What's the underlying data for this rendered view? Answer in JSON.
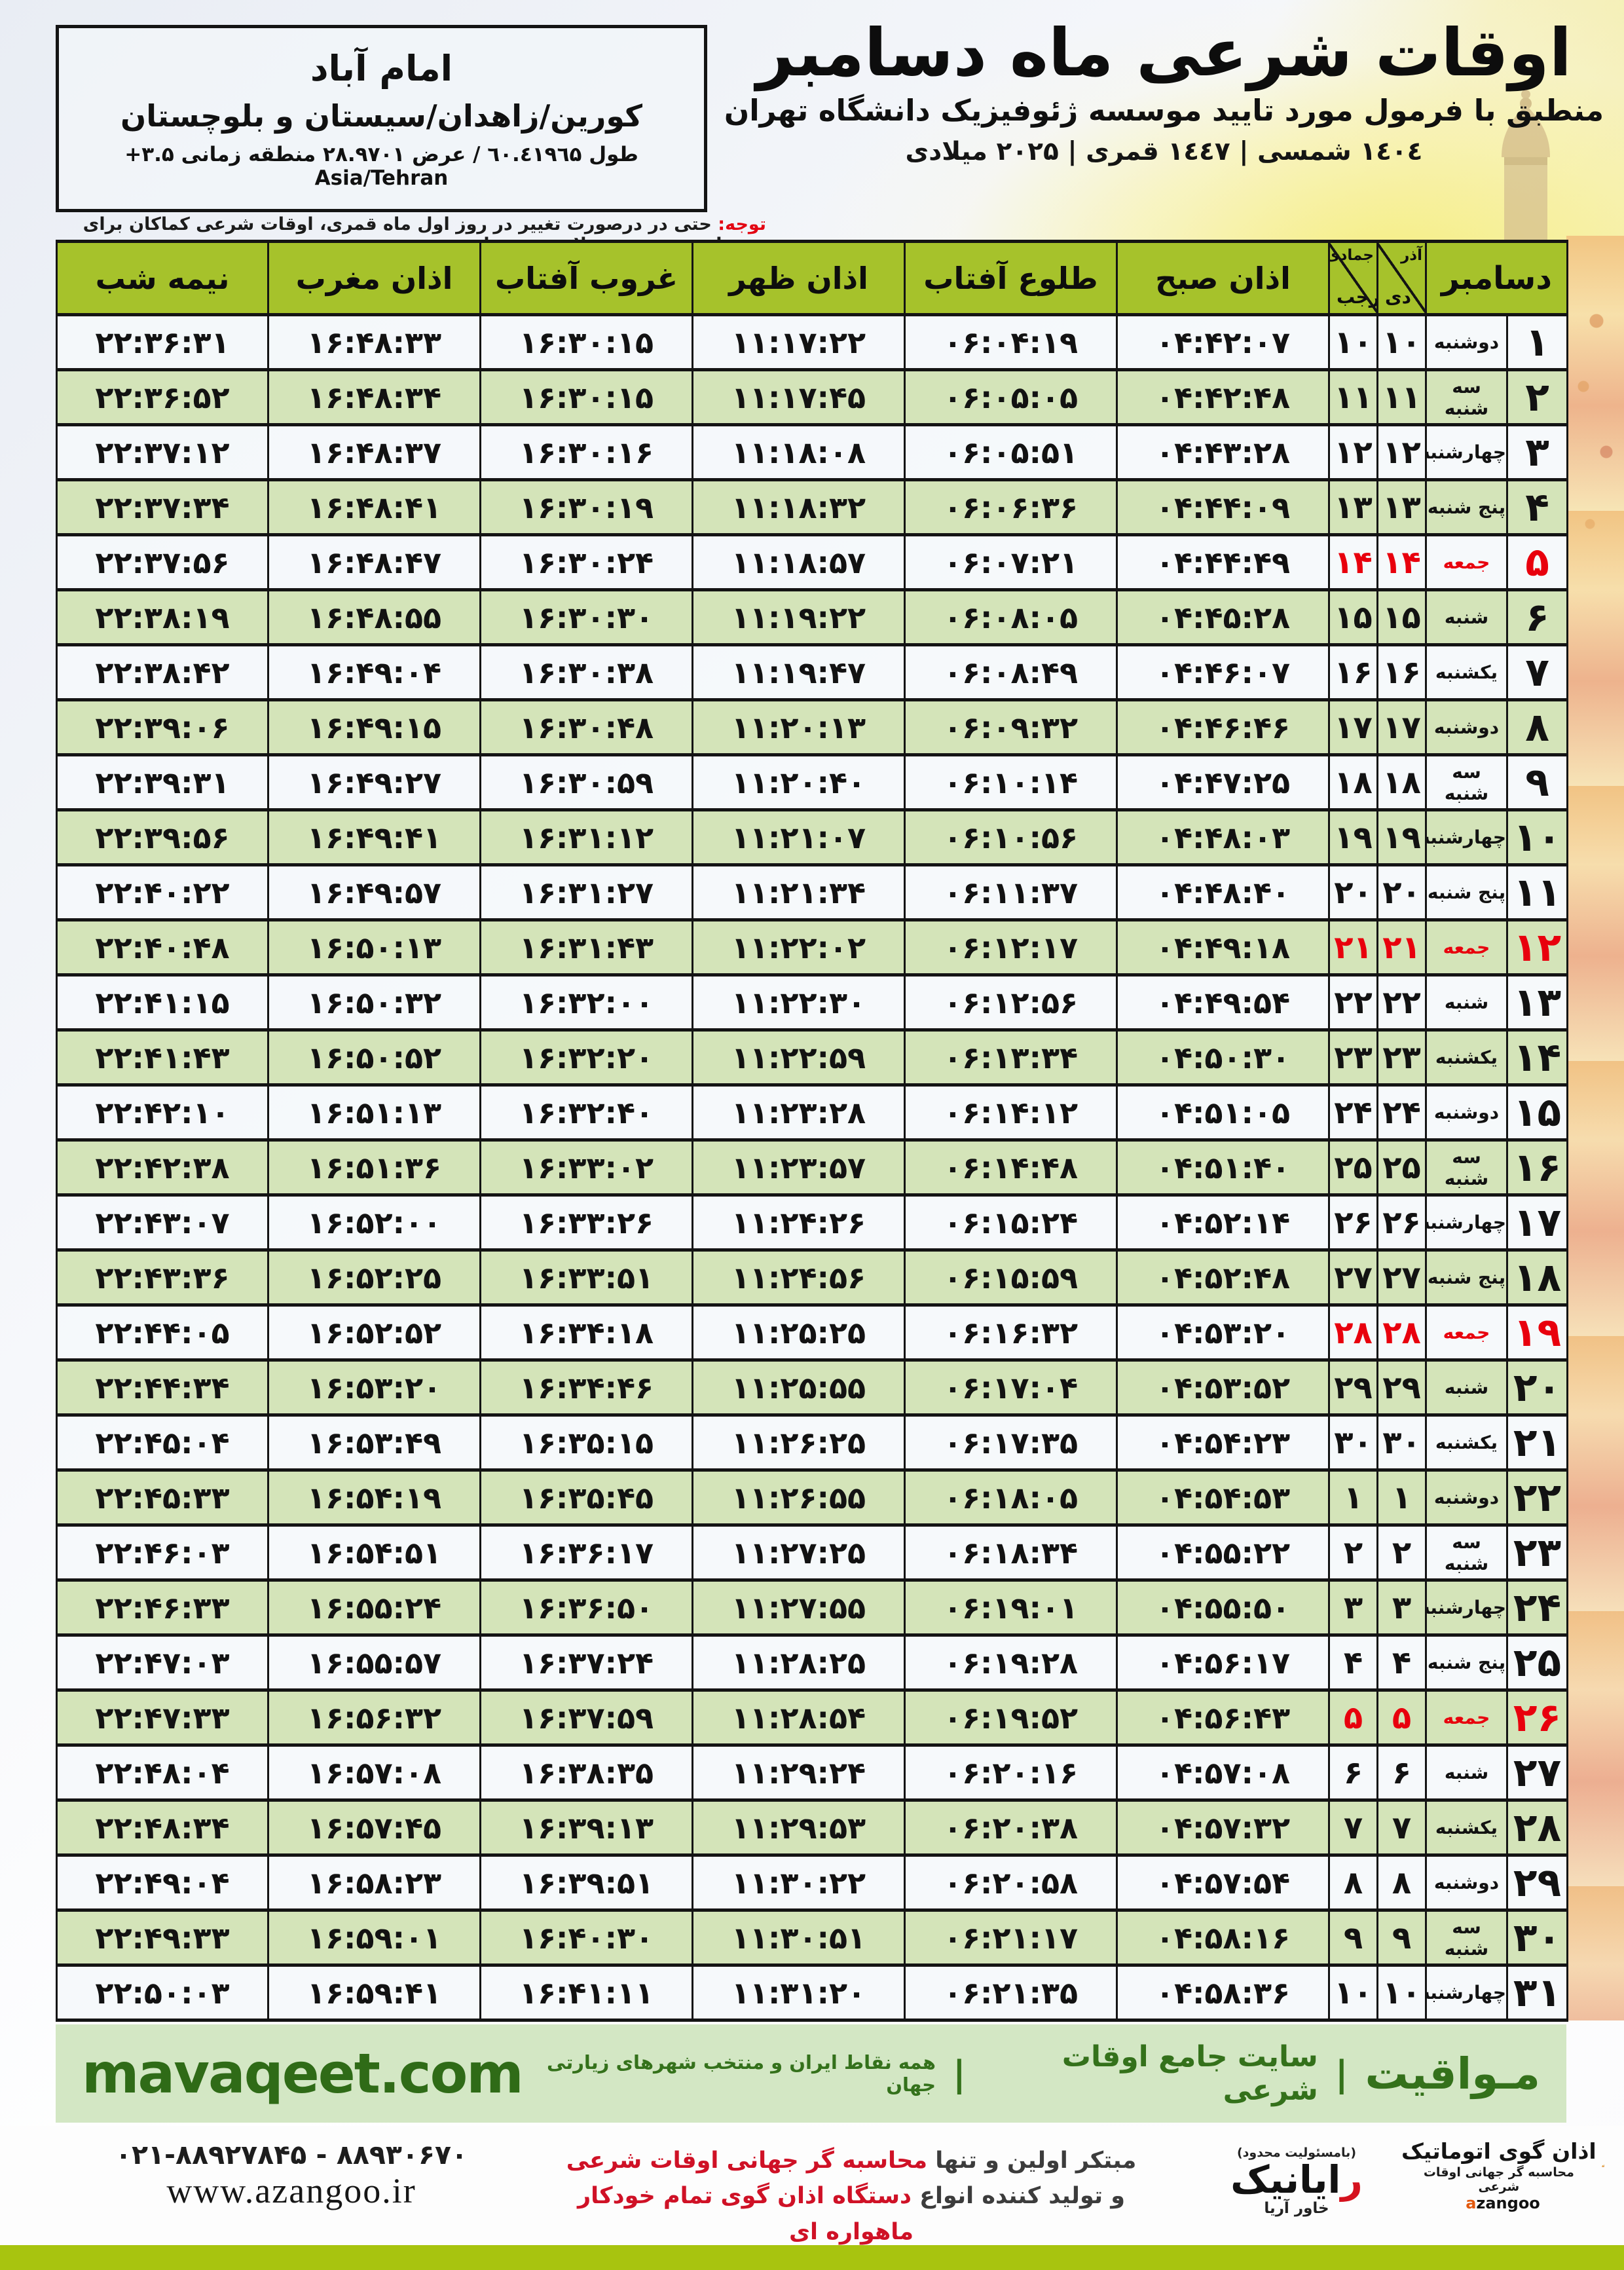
{
  "colors": {
    "header_green": "#a6c22b",
    "row_green": "#d4e4b9",
    "row_light": "#f5f8fb",
    "friday_red": "#e8000d",
    "band_green_bg": "#d3e7c4",
    "band_green_text": "#2f6b17",
    "bottom_bar_green": "#a8c40f",
    "accent_red": "#cf1126",
    "logo_orange": "#f09a2e"
  },
  "header": {
    "title": "اوقات شرعی ماه دسامبر",
    "subtitle": "منطبق با فرمول مورد تایید موسسه ژئوفیزیک دانشگاه تهران",
    "years": "۱٤۰٤ شمسی | ۱٤٤۷ قمری | ۲۰۲۵ میلادی"
  },
  "location": {
    "city": "امام آباد",
    "region": "کورین/زاهدان/سیستان و بلوچستان",
    "coords": "طول ٦۰.٤۱۹٦۵ / عرض ۲۸.۹۷۰۱ منطقه زمانی ۳.۵+ Asia/Tehran"
  },
  "notice": {
    "label": "توجه:",
    "text": "حتی در درصورت تغییر در روز اول ماه قمری، اوقات شرعی کماکان برای روزهای شمسی و میلادی معتبر است."
  },
  "table": {
    "headers": {
      "december": "دسامبر",
      "jalali_top": "آذر",
      "jalali_bottom": "دی",
      "hijri_top": "جمادی الثانی",
      "hijri_bottom": "رجب",
      "fajr": "اذان صبح",
      "sunrise": "طلوع آفتاب",
      "dhuhr": "اذان ظهر",
      "sunset": "غروب آفتاب",
      "maghrib": "اذان مغرب",
      "midnight": "نیمه شب"
    },
    "rows": [
      {
        "day": "۱",
        "weekday": "دوشنبه",
        "jalali": "۱۰",
        "hijri": "۱۰",
        "fajr": "۰۴:۴۲:۰۷",
        "sunrise": "۰۶:۰۴:۱۹",
        "dhuhr": "۱۱:۱۷:۲۲",
        "sunset": "۱۶:۳۰:۱۵",
        "maghrib": "۱۶:۴۸:۳۳",
        "midnight": "۲۲:۳۶:۳۱",
        "friday": false
      },
      {
        "day": "۲",
        "weekday": "سه شنبه",
        "jalali": "۱۱",
        "hijri": "۱۱",
        "fajr": "۰۴:۴۲:۴۸",
        "sunrise": "۰۶:۰۵:۰۵",
        "dhuhr": "۱۱:۱۷:۴۵",
        "sunset": "۱۶:۳۰:۱۵",
        "maghrib": "۱۶:۴۸:۳۴",
        "midnight": "۲۲:۳۶:۵۲",
        "friday": false
      },
      {
        "day": "۳",
        "weekday": "چهارشنبه",
        "jalali": "۱۲",
        "hijri": "۱۲",
        "fajr": "۰۴:۴۳:۲۸",
        "sunrise": "۰۶:۰۵:۵۱",
        "dhuhr": "۱۱:۱۸:۰۸",
        "sunset": "۱۶:۳۰:۱۶",
        "maghrib": "۱۶:۴۸:۳۷",
        "midnight": "۲۲:۳۷:۱۲",
        "friday": false
      },
      {
        "day": "۴",
        "weekday": "پنج شنبه",
        "jalali": "۱۳",
        "hijri": "۱۳",
        "fajr": "۰۴:۴۴:۰۹",
        "sunrise": "۰۶:۰۶:۳۶",
        "dhuhr": "۱۱:۱۸:۳۲",
        "sunset": "۱۶:۳۰:۱۹",
        "maghrib": "۱۶:۴۸:۴۱",
        "midnight": "۲۲:۳۷:۳۴",
        "friday": false
      },
      {
        "day": "۵",
        "weekday": "جمعه",
        "jalali": "۱۴",
        "hijri": "۱۴",
        "fajr": "۰۴:۴۴:۴۹",
        "sunrise": "۰۶:۰۷:۲۱",
        "dhuhr": "۱۱:۱۸:۵۷",
        "sunset": "۱۶:۳۰:۲۴",
        "maghrib": "۱۶:۴۸:۴۷",
        "midnight": "۲۲:۳۷:۵۶",
        "friday": true
      },
      {
        "day": "۶",
        "weekday": "شنبه",
        "jalali": "۱۵",
        "hijri": "۱۵",
        "fajr": "۰۴:۴۵:۲۸",
        "sunrise": "۰۶:۰۸:۰۵",
        "dhuhr": "۱۱:۱۹:۲۲",
        "sunset": "۱۶:۳۰:۳۰",
        "maghrib": "۱۶:۴۸:۵۵",
        "midnight": "۲۲:۳۸:۱۹",
        "friday": false
      },
      {
        "day": "۷",
        "weekday": "یکشنبه",
        "jalali": "۱۶",
        "hijri": "۱۶",
        "fajr": "۰۴:۴۶:۰۷",
        "sunrise": "۰۶:۰۸:۴۹",
        "dhuhr": "۱۱:۱۹:۴۷",
        "sunset": "۱۶:۳۰:۳۸",
        "maghrib": "۱۶:۴۹:۰۴",
        "midnight": "۲۲:۳۸:۴۲",
        "friday": false
      },
      {
        "day": "۸",
        "weekday": "دوشنبه",
        "jalali": "۱۷",
        "hijri": "۱۷",
        "fajr": "۰۴:۴۶:۴۶",
        "sunrise": "۰۶:۰۹:۳۲",
        "dhuhr": "۱۱:۲۰:۱۳",
        "sunset": "۱۶:۳۰:۴۸",
        "maghrib": "۱۶:۴۹:۱۵",
        "midnight": "۲۲:۳۹:۰۶",
        "friday": false
      },
      {
        "day": "۹",
        "weekday": "سه شنبه",
        "jalali": "۱۸",
        "hijri": "۱۸",
        "fajr": "۰۴:۴۷:۲۵",
        "sunrise": "۰۶:۱۰:۱۴",
        "dhuhr": "۱۱:۲۰:۴۰",
        "sunset": "۱۶:۳۰:۵۹",
        "maghrib": "۱۶:۴۹:۲۷",
        "midnight": "۲۲:۳۹:۳۱",
        "friday": false
      },
      {
        "day": "۱۰",
        "weekday": "چهارشنبه",
        "jalali": "۱۹",
        "hijri": "۱۹",
        "fajr": "۰۴:۴۸:۰۳",
        "sunrise": "۰۶:۱۰:۵۶",
        "dhuhr": "۱۱:۲۱:۰۷",
        "sunset": "۱۶:۳۱:۱۲",
        "maghrib": "۱۶:۴۹:۴۱",
        "midnight": "۲۲:۳۹:۵۶",
        "friday": false
      },
      {
        "day": "۱۱",
        "weekday": "پنج شنبه",
        "jalali": "۲۰",
        "hijri": "۲۰",
        "fajr": "۰۴:۴۸:۴۰",
        "sunrise": "۰۶:۱۱:۳۷",
        "dhuhr": "۱۱:۲۱:۳۴",
        "sunset": "۱۶:۳۱:۲۷",
        "maghrib": "۱۶:۴۹:۵۷",
        "midnight": "۲۲:۴۰:۲۲",
        "friday": false
      },
      {
        "day": "۱۲",
        "weekday": "جمعه",
        "jalali": "۲۱",
        "hijri": "۲۱",
        "fajr": "۰۴:۴۹:۱۸",
        "sunrise": "۰۶:۱۲:۱۷",
        "dhuhr": "۱۱:۲۲:۰۲",
        "sunset": "۱۶:۳۱:۴۳",
        "maghrib": "۱۶:۵۰:۱۳",
        "midnight": "۲۲:۴۰:۴۸",
        "friday": true
      },
      {
        "day": "۱۳",
        "weekday": "شنبه",
        "jalali": "۲۲",
        "hijri": "۲۲",
        "fajr": "۰۴:۴۹:۵۴",
        "sunrise": "۰۶:۱۲:۵۶",
        "dhuhr": "۱۱:۲۲:۳۰",
        "sunset": "۱۶:۳۲:۰۰",
        "maghrib": "۱۶:۵۰:۳۲",
        "midnight": "۲۲:۴۱:۱۵",
        "friday": false
      },
      {
        "day": "۱۴",
        "weekday": "یکشنبه",
        "jalali": "۲۳",
        "hijri": "۲۳",
        "fajr": "۰۴:۵۰:۳۰",
        "sunrise": "۰۶:۱۳:۳۴",
        "dhuhr": "۱۱:۲۲:۵۹",
        "sunset": "۱۶:۳۲:۲۰",
        "maghrib": "۱۶:۵۰:۵۲",
        "midnight": "۲۲:۴۱:۴۳",
        "friday": false
      },
      {
        "day": "۱۵",
        "weekday": "دوشنبه",
        "jalali": "۲۴",
        "hijri": "۲۴",
        "fajr": "۰۴:۵۱:۰۵",
        "sunrise": "۰۶:۱۴:۱۲",
        "dhuhr": "۱۱:۲۳:۲۸",
        "sunset": "۱۶:۳۲:۴۰",
        "maghrib": "۱۶:۵۱:۱۳",
        "midnight": "۲۲:۴۲:۱۰",
        "friday": false
      },
      {
        "day": "۱۶",
        "weekday": "سه شنبه",
        "jalali": "۲۵",
        "hijri": "۲۵",
        "fajr": "۰۴:۵۱:۴۰",
        "sunrise": "۰۶:۱۴:۴۸",
        "dhuhr": "۱۱:۲۳:۵۷",
        "sunset": "۱۶:۳۳:۰۲",
        "maghrib": "۱۶:۵۱:۳۶",
        "midnight": "۲۲:۴۲:۳۸",
        "friday": false
      },
      {
        "day": "۱۷",
        "weekday": "چهارشنبه",
        "jalali": "۲۶",
        "hijri": "۲۶",
        "fajr": "۰۴:۵۲:۱۴",
        "sunrise": "۰۶:۱۵:۲۴",
        "dhuhr": "۱۱:۲۴:۲۶",
        "sunset": "۱۶:۳۳:۲۶",
        "maghrib": "۱۶:۵۲:۰۰",
        "midnight": "۲۲:۴۳:۰۷",
        "friday": false
      },
      {
        "day": "۱۸",
        "weekday": "پنج شنبه",
        "jalali": "۲۷",
        "hijri": "۲۷",
        "fajr": "۰۴:۵۲:۴۸",
        "sunrise": "۰۶:۱۵:۵۹",
        "dhuhr": "۱۱:۲۴:۵۶",
        "sunset": "۱۶:۳۳:۵۱",
        "maghrib": "۱۶:۵۲:۲۵",
        "midnight": "۲۲:۴۳:۳۶",
        "friday": false
      },
      {
        "day": "۱۹",
        "weekday": "جمعه",
        "jalali": "۲۸",
        "hijri": "۲۸",
        "fajr": "۰۴:۵۳:۲۰",
        "sunrise": "۰۶:۱۶:۳۲",
        "dhuhr": "۱۱:۲۵:۲۵",
        "sunset": "۱۶:۳۴:۱۸",
        "maghrib": "۱۶:۵۲:۵۲",
        "midnight": "۲۲:۴۴:۰۵",
        "friday": true
      },
      {
        "day": "۲۰",
        "weekday": "شنبه",
        "jalali": "۲۹",
        "hijri": "۲۹",
        "fajr": "۰۴:۵۳:۵۲",
        "sunrise": "۰۶:۱۷:۰۴",
        "dhuhr": "۱۱:۲۵:۵۵",
        "sunset": "۱۶:۳۴:۴۶",
        "maghrib": "۱۶:۵۳:۲۰",
        "midnight": "۲۲:۴۴:۳۴",
        "friday": false
      },
      {
        "day": "۲۱",
        "weekday": "یکشنبه",
        "jalali": "۳۰",
        "hijri": "۳۰",
        "fajr": "۰۴:۵۴:۲۳",
        "sunrise": "۰۶:۱۷:۳۵",
        "dhuhr": "۱۱:۲۶:۲۵",
        "sunset": "۱۶:۳۵:۱۵",
        "maghrib": "۱۶:۵۳:۴۹",
        "midnight": "۲۲:۴۵:۰۴",
        "friday": false
      },
      {
        "day": "۲۲",
        "weekday": "دوشنبه",
        "jalali": "۱",
        "hijri": "۱",
        "fajr": "۰۴:۵۴:۵۳",
        "sunrise": "۰۶:۱۸:۰۵",
        "dhuhr": "۱۱:۲۶:۵۵",
        "sunset": "۱۶:۳۵:۴۵",
        "maghrib": "۱۶:۵۴:۱۹",
        "midnight": "۲۲:۴۵:۳۳",
        "friday": false
      },
      {
        "day": "۲۳",
        "weekday": "سه شنبه",
        "jalali": "۲",
        "hijri": "۲",
        "fajr": "۰۴:۵۵:۲۲",
        "sunrise": "۰۶:۱۸:۳۴",
        "dhuhr": "۱۱:۲۷:۲۵",
        "sunset": "۱۶:۳۶:۱۷",
        "maghrib": "۱۶:۵۴:۵۱",
        "midnight": "۲۲:۴۶:۰۳",
        "friday": false
      },
      {
        "day": "۲۴",
        "weekday": "چهارشنبه",
        "jalali": "۳",
        "hijri": "۳",
        "fajr": "۰۴:۵۵:۵۰",
        "sunrise": "۰۶:۱۹:۰۱",
        "dhuhr": "۱۱:۲۷:۵۵",
        "sunset": "۱۶:۳۶:۵۰",
        "maghrib": "۱۶:۵۵:۲۴",
        "midnight": "۲۲:۴۶:۳۳",
        "friday": false
      },
      {
        "day": "۲۵",
        "weekday": "پنج شنبه",
        "jalali": "۴",
        "hijri": "۴",
        "fajr": "۰۴:۵۶:۱۷",
        "sunrise": "۰۶:۱۹:۲۸",
        "dhuhr": "۱۱:۲۸:۲۵",
        "sunset": "۱۶:۳۷:۲۴",
        "maghrib": "۱۶:۵۵:۵۷",
        "midnight": "۲۲:۴۷:۰۳",
        "friday": false
      },
      {
        "day": "۲۶",
        "weekday": "جمعه",
        "jalali": "۵",
        "hijri": "۵",
        "fajr": "۰۴:۵۶:۴۳",
        "sunrise": "۰۶:۱۹:۵۲",
        "dhuhr": "۱۱:۲۸:۵۴",
        "sunset": "۱۶:۳۷:۵۹",
        "maghrib": "۱۶:۵۶:۳۲",
        "midnight": "۲۲:۴۷:۳۳",
        "friday": true
      },
      {
        "day": "۲۷",
        "weekday": "شنبه",
        "jalali": "۶",
        "hijri": "۶",
        "fajr": "۰۴:۵۷:۰۸",
        "sunrise": "۰۶:۲۰:۱۶",
        "dhuhr": "۱۱:۲۹:۲۴",
        "sunset": "۱۶:۳۸:۳۵",
        "maghrib": "۱۶:۵۷:۰۸",
        "midnight": "۲۲:۴۸:۰۴",
        "friday": false
      },
      {
        "day": "۲۸",
        "weekday": "یکشنبه",
        "jalali": "۷",
        "hijri": "۷",
        "fajr": "۰۴:۵۷:۳۲",
        "sunrise": "۰۶:۲۰:۳۸",
        "dhuhr": "۱۱:۲۹:۵۳",
        "sunset": "۱۶:۳۹:۱۳",
        "maghrib": "۱۶:۵۷:۴۵",
        "midnight": "۲۲:۴۸:۳۴",
        "friday": false
      },
      {
        "day": "۲۹",
        "weekday": "دوشنبه",
        "jalali": "۸",
        "hijri": "۸",
        "fajr": "۰۴:۵۷:۵۴",
        "sunrise": "۰۶:۲۰:۵۸",
        "dhuhr": "۱۱:۳۰:۲۲",
        "sunset": "۱۶:۳۹:۵۱",
        "maghrib": "۱۶:۵۸:۲۳",
        "midnight": "۲۲:۴۹:۰۴",
        "friday": false
      },
      {
        "day": "۳۰",
        "weekday": "سه شنبه",
        "jalali": "۹",
        "hijri": "۹",
        "fajr": "۰۴:۵۸:۱۶",
        "sunrise": "۰۶:۲۱:۱۷",
        "dhuhr": "۱۱:۳۰:۵۱",
        "sunset": "۱۶:۴۰:۳۰",
        "maghrib": "۱۶:۵۹:۰۱",
        "midnight": "۲۲:۴۹:۳۳",
        "friday": false
      },
      {
        "day": "۳۱",
        "weekday": "چهارشنبه",
        "jalali": "۱۰",
        "hijri": "۱۰",
        "fajr": "۰۴:۵۸:۳۶",
        "sunrise": "۰۶:۲۱:۳۵",
        "dhuhr": "۱۱:۳۱:۲۰",
        "sunset": "۱۶:۴۱:۱۱",
        "maghrib": "۱۶:۵۹:۴۱",
        "midnight": "۲۲:۵۰:۰۳",
        "friday": false
      }
    ]
  },
  "mavaqeet_band": {
    "brand": "مـواقیت",
    "separator": "|",
    "tagline1": "سایت جامع اوقات شرعی",
    "tagline2": "همه نقاط ایران و منتخب شهرهای زیارتی جهان",
    "url": "mavaqeet.com"
  },
  "bottom": {
    "phones": "۰۲۱-۸۸۹۲۷۸۴۵ - ۸۸۹۳۰۶۷۰",
    "site": "www.azangoo.ir",
    "maker_line1_dark": "مبتکر اولین و تنها",
    "maker_line1_red": "محاسبه گر جهانی اوقات شرعی",
    "maker_line2_dark": "و تولید کننده انواع",
    "maker_line2_red": "دستگاه اذان گوی تمام خودکار ماهواره ای",
    "rayanik": {
      "tiny": "(بامسئولیت محدود)",
      "name_initial": "ر",
      "name_rest": "ایانیک",
      "sub": "خاور آریا"
    },
    "azangoo": {
      "name": "اذان گوی اتوماتیک",
      "sub": "محاسبه گر جهانی اوقات شرعی",
      "latin_a": "a",
      "latin_rest": "zangoo",
      "icon": "minaret-dome-icon"
    }
  }
}
